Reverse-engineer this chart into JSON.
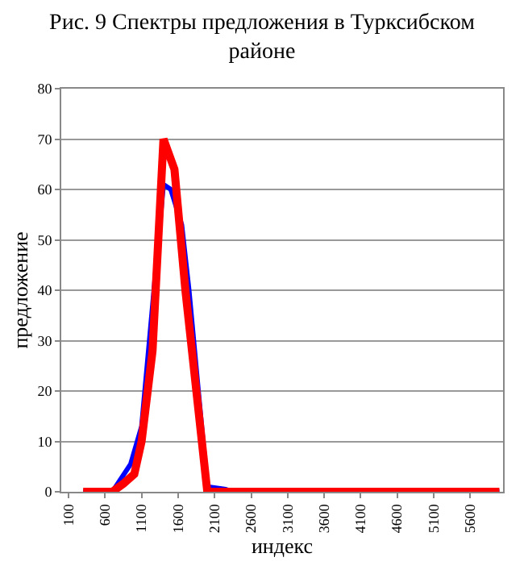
{
  "chart_data": {
    "type": "line",
    "title": "Рис. 9 Спектры предложения в Турксибском районе",
    "xlabel": "индекс",
    "ylabel": "предложение",
    "xlim": [
      0,
      6050
    ],
    "xticks": [
      100,
      600,
      1100,
      1600,
      2100,
      2600,
      3100,
      3600,
      4100,
      4600,
      5100,
      5600
    ],
    "ylim": [
      0,
      80
    ],
    "yticks": [
      0,
      10,
      20,
      30,
      40,
      50,
      60,
      70,
      80
    ],
    "grid": "y",
    "marker": "none",
    "line_style": "solid",
    "series": [
      {
        "color": "#0000ff",
        "x": [
          300,
          700,
          950,
          1100,
          1400,
          1500,
          1650,
          1750,
          2000,
          2250,
          2350,
          6000
        ],
        "values": [
          0,
          0,
          5.5,
          13,
          61,
          60,
          53,
          40,
          1,
          0.5,
          0,
          0
        ]
      },
      {
        "color": "#ff0000",
        "x": [
          300,
          700,
          850,
          1000,
          1100,
          1250,
          1400,
          1550,
          1700,
          1850,
          2000,
          6000
        ],
        "values": [
          0,
          0,
          1.6,
          3.5,
          10,
          28,
          70,
          64,
          40,
          20,
          0,
          0
        ]
      }
    ]
  }
}
